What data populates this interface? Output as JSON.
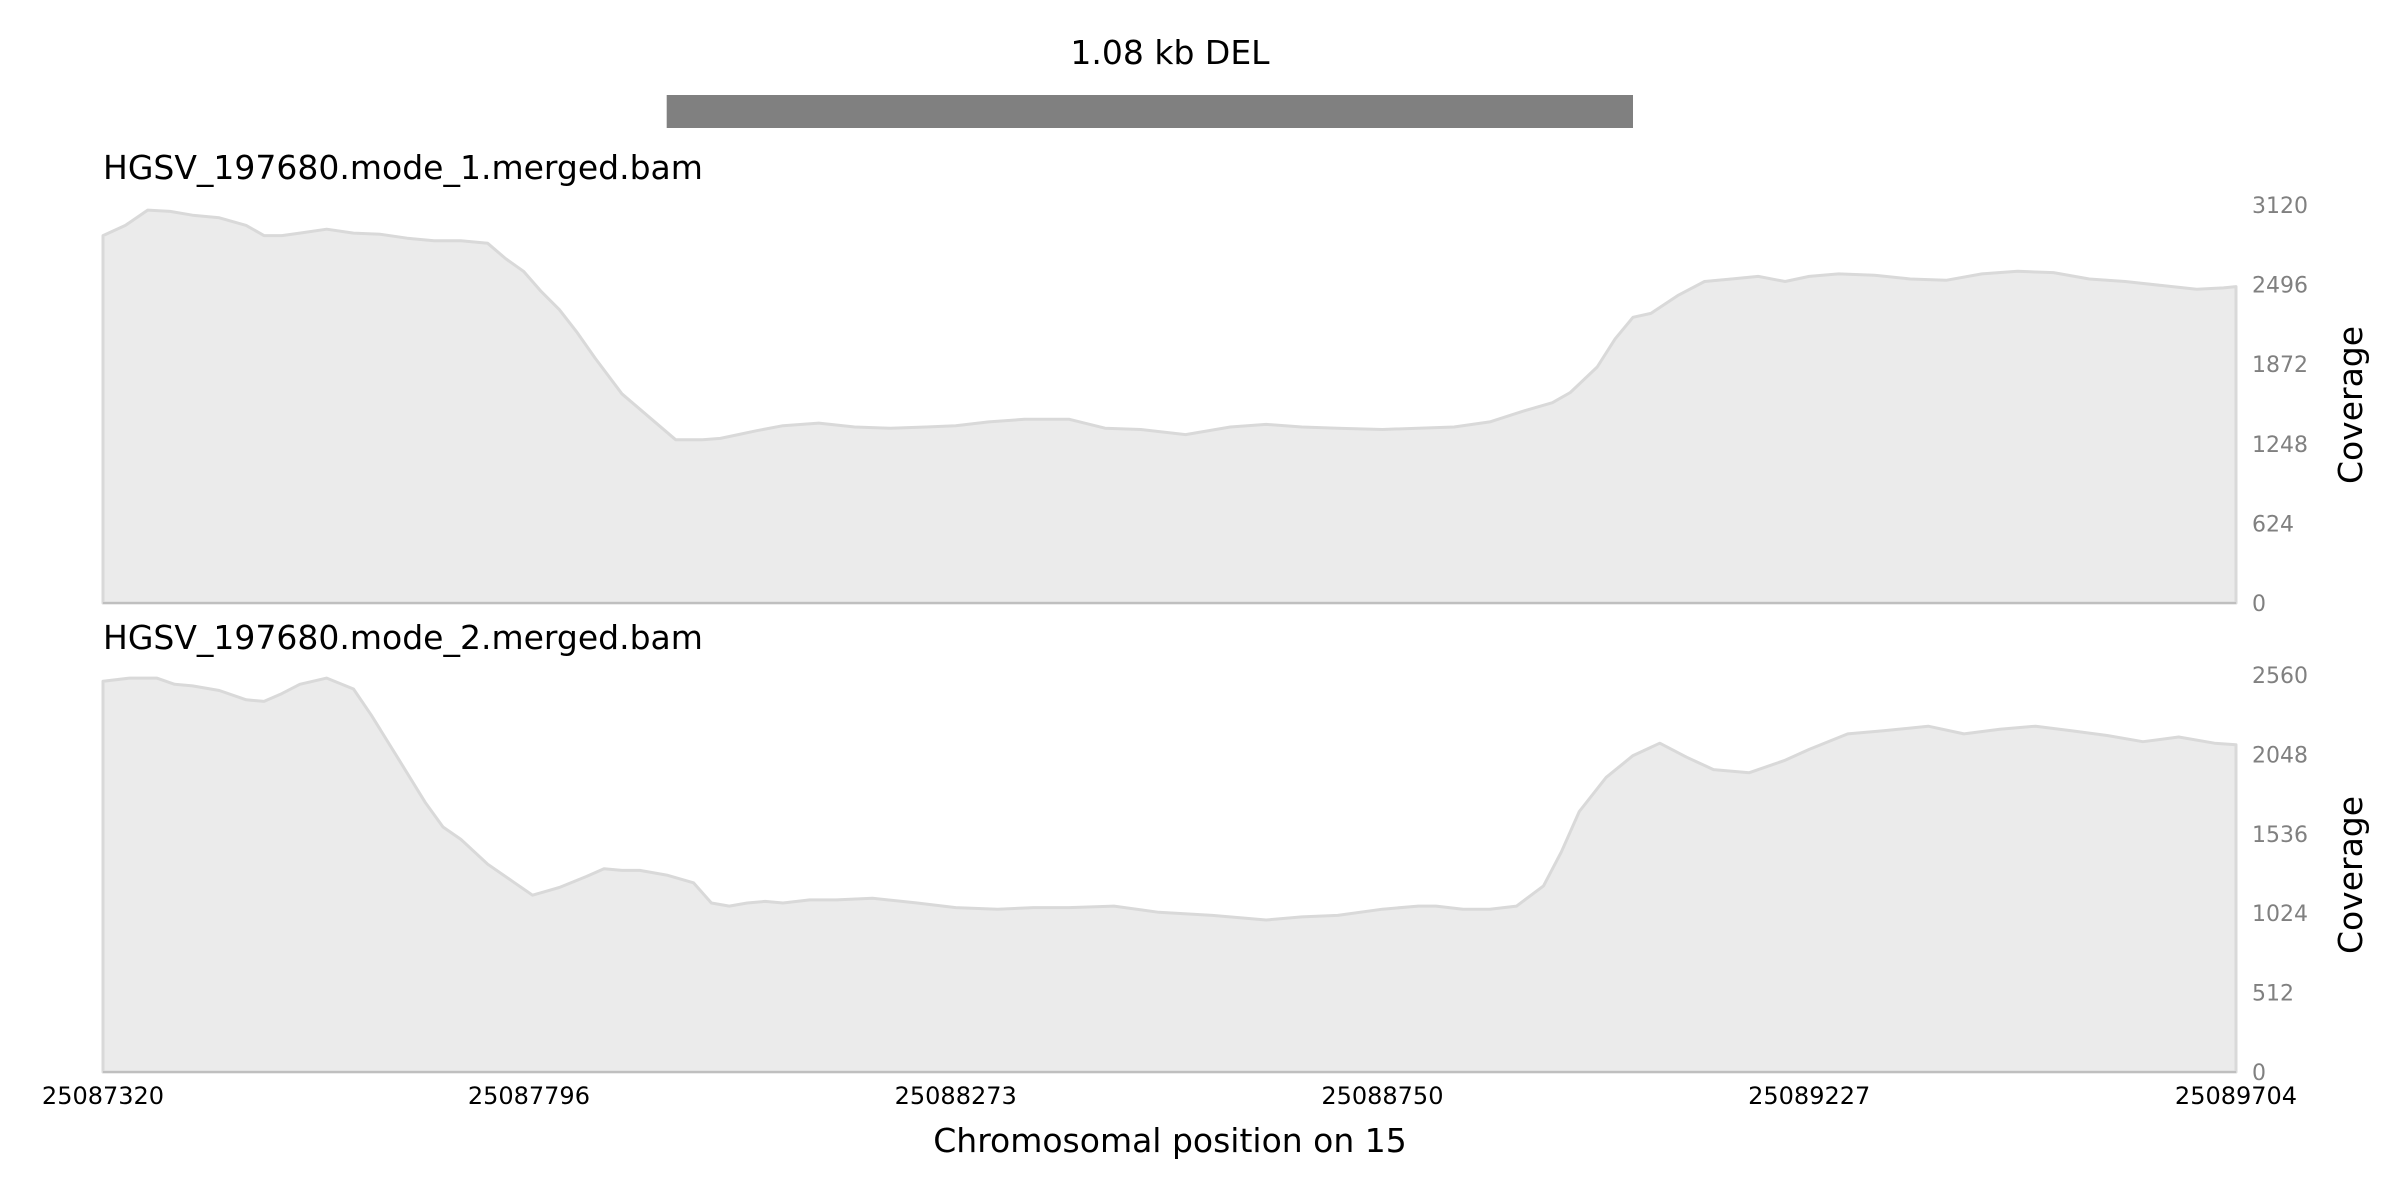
{
  "chart_data": {
    "type": "area",
    "title": "1.08 kb DEL",
    "variant": {
      "label": "1.08 kb DEL",
      "start": 25087950,
      "end": 25089030,
      "color": "#808080"
    },
    "xlabel": "Chromosomal position on 15",
    "xlim": [
      25087320,
      25089704
    ],
    "xticks": [
      "25087320",
      "25087796",
      "25088273",
      "25088750",
      "25089227",
      "25089704"
    ],
    "fill_color": "#ebebeb",
    "line_color": "#d9d9d9",
    "tracks": [
      {
        "name": "HGSV_197680.mode_1.merged.bam",
        "ylabel": "Coverage",
        "ylim": [
          0,
          3120
        ],
        "yticks": [
          "3120",
          "2496",
          "1872",
          "1248",
          "624",
          "0"
        ],
        "x": [
          25087320,
          25087345,
          25087370,
          25087395,
          25087420,
          25087450,
          25087480,
          25087500,
          25087520,
          25087540,
          25087570,
          25087600,
          25087630,
          25087660,
          25087690,
          25087720,
          25087750,
          25087770,
          25087790,
          25087810,
          25087830,
          25087850,
          25087870,
          25087900,
          25087930,
          25087960,
          25087990,
          25088010,
          25088030,
          25088050,
          25088080,
          25088120,
          25088160,
          25088200,
          25088240,
          25088273,
          25088310,
          25088350,
          25088400,
          25088440,
          25088480,
          25088530,
          25088580,
          25088620,
          25088660,
          25088700,
          25088750,
          25088790,
          25088830,
          25088870,
          25088910,
          25088940,
          25088960,
          25088990,
          25089010,
          25089030,
          25089050,
          25089080,
          25089110,
          25089140,
          25089170,
          25089200,
          25089227,
          25089260,
          25089300,
          25089340,
          25089380,
          25089420,
          25089460,
          25089500,
          25089540,
          25089580,
          25089620,
          25089660,
          25089690,
          25089704
        ],
        "y": [
          2880,
          2960,
          3080,
          3070,
          3040,
          3020,
          2960,
          2880,
          2880,
          2900,
          2930,
          2900,
          2890,
          2860,
          2840,
          2840,
          2820,
          2700,
          2600,
          2440,
          2300,
          2120,
          1920,
          1640,
          1460,
          1280,
          1280,
          1290,
          1320,
          1350,
          1390,
          1410,
          1380,
          1370,
          1380,
          1390,
          1420,
          1440,
          1440,
          1370,
          1360,
          1320,
          1380,
          1400,
          1380,
          1370,
          1360,
          1370,
          1380,
          1420,
          1510,
          1570,
          1650,
          1850,
          2070,
          2240,
          2270,
          2410,
          2520,
          2540,
          2560,
          2520,
          2560,
          2580,
          2570,
          2540,
          2530,
          2580,
          2600,
          2590,
          2540,
          2520,
          2490,
          2460,
          2470,
          2480
        ]
      },
      {
        "name": "HGSV_197680.mode_2.merged.bam",
        "ylabel": "Coverage",
        "ylim": [
          0,
          2560
        ],
        "yticks": [
          "2560",
          "2048",
          "1536",
          "1024",
          "512",
          "0"
        ],
        "x": [
          25087320,
          25087350,
          25087380,
          25087400,
          25087420,
          25087450,
          25087480,
          25087500,
          25087520,
          25087540,
          25087570,
          25087600,
          25087620,
          25087650,
          25087680,
          25087700,
          25087720,
          25087750,
          25087780,
          25087800,
          25087830,
          25087860,
          25087880,
          25087900,
          25087920,
          25087950,
          25087980,
          25088000,
          25088020,
          25088040,
          25088060,
          25088080,
          25088110,
          25088140,
          25088180,
          25088230,
          25088273,
          25088320,
          25088360,
          25088400,
          25088450,
          25088500,
          25088560,
          25088620,
          25088660,
          25088700,
          25088750,
          25088790,
          25088810,
          25088840,
          25088870,
          25088900,
          25088930,
          25088950,
          25088970,
          25089000,
          25089030,
          25089060,
          25089090,
          25089120,
          25089160,
          25089200,
          25089227,
          25089270,
          25089310,
          25089360,
          25089400,
          25089440,
          25089480,
          25089520,
          25089560,
          25089600,
          25089640,
          25089680,
          25089704
        ],
        "y": [
          2520,
          2540,
          2540,
          2500,
          2490,
          2460,
          2400,
          2390,
          2440,
          2500,
          2540,
          2470,
          2300,
          2020,
          1740,
          1580,
          1500,
          1340,
          1220,
          1140,
          1190,
          1260,
          1310,
          1300,
          1300,
          1270,
          1220,
          1090,
          1070,
          1090,
          1100,
          1090,
          1110,
          1110,
          1120,
          1090,
          1060,
          1050,
          1060,
          1060,
          1070,
          1030,
          1010,
          980,
          1000,
          1010,
          1050,
          1070,
          1070,
          1050,
          1050,
          1070,
          1200,
          1420,
          1680,
          1900,
          2040,
          2120,
          2030,
          1950,
          1930,
          2010,
          2080,
          2180,
          2200,
          2230,
          2180,
          2210,
          2230,
          2200,
          2170,
          2130,
          2160,
          2120,
          2110
        ]
      }
    ]
  }
}
